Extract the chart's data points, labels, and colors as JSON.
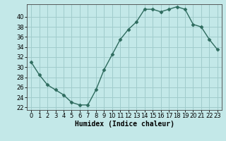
{
  "x": [
    0,
    1,
    2,
    3,
    4,
    5,
    6,
    7,
    8,
    9,
    10,
    11,
    12,
    13,
    14,
    15,
    16,
    17,
    18,
    19,
    20,
    21,
    22,
    23
  ],
  "y": [
    31,
    28.5,
    26.5,
    25.5,
    24.5,
    23,
    22.5,
    22.5,
    25.5,
    29.5,
    32.5,
    35.5,
    37.5,
    39,
    41.5,
    41.5,
    41,
    41.5,
    42,
    41.5,
    38.5,
    38,
    35.5,
    33.5
  ],
  "line_color": "#2e6b5e",
  "marker": "D",
  "marker_size": 2.5,
  "bg_color": "#c3e8e8",
  "grid_color": "#a0cccc",
  "xlabel": "Humidex (Indice chaleur)",
  "xlim": [
    -0.5,
    23.5
  ],
  "ylim": [
    21.5,
    42.5
  ],
  "yticks": [
    22,
    24,
    26,
    28,
    30,
    32,
    34,
    36,
    38,
    40
  ],
  "xticks": [
    0,
    1,
    2,
    3,
    4,
    5,
    6,
    7,
    8,
    9,
    10,
    11,
    12,
    13,
    14,
    15,
    16,
    17,
    18,
    19,
    20,
    21,
    22,
    23
  ],
  "label_fontsize": 7,
  "tick_fontsize": 6
}
